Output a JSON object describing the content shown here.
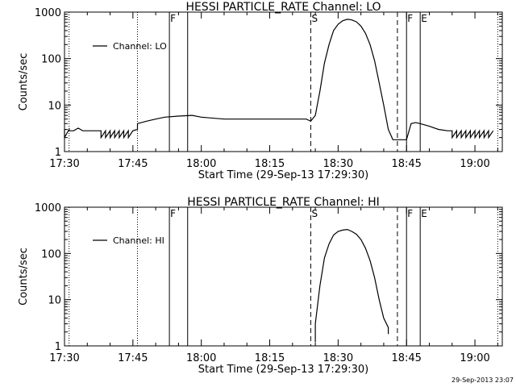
{
  "chart_data": [
    {
      "type": "line",
      "title": "HESSI PARTICLE_RATE Channel: LO",
      "xlabel": "Start Time (29-Sep-13 17:29:30)",
      "ylabel": "Counts/sec",
      "y_scale": "log",
      "ylim": [
        1,
        1000
      ],
      "xlim": [
        "17:30",
        "19:06"
      ],
      "x_ticks": [
        "17:30",
        "17:45",
        "18:00",
        "18:15",
        "18:30",
        "18:45",
        "19:00"
      ],
      "y_ticks": [
        "1",
        "10",
        "100",
        "1000"
      ],
      "legend": {
        "placement": "top-left",
        "label": "Channel: LO"
      },
      "markers": [
        {
          "x": "17:31",
          "style": "dotted",
          "label": ""
        },
        {
          "x": "17:46",
          "style": "dotted",
          "label": ""
        },
        {
          "x": "17:53",
          "style": "solid",
          "label": "F"
        },
        {
          "x": "17:57",
          "style": "solid",
          "label": ""
        },
        {
          "x": "18:24",
          "style": "dashed",
          "label": "S"
        },
        {
          "x": "18:43",
          "style": "dashed",
          "label": ""
        },
        {
          "x": "18:45",
          "style": "solid",
          "label": "F"
        },
        {
          "x": "18:48",
          "style": "solid",
          "label": "E"
        },
        {
          "x": "19:05",
          "style": "dotted",
          "label": ""
        }
      ],
      "series": [
        {
          "x": [
            "17:30",
            "17:30",
            "17:31",
            "17:31",
            "17:32",
            "17:33",
            "17:34",
            "17:38",
            "17:38",
            "17:39",
            "17:39",
            "17:40",
            "17:40",
            "17:41",
            "17:41",
            "17:42",
            "17:42",
            "17:43",
            "17:43",
            "17:44",
            "17:44",
            "17:45",
            "17:46",
            "17:46",
            "17:48",
            "17:50",
            "17:52",
            "17:55",
            "17:58",
            "18:00",
            "18:05",
            "18:10",
            "18:15",
            "18:20",
            "18:22",
            "18:23",
            "18:24",
            "18:25",
            "18:26",
            "18:27",
            "18:28",
            "18:29",
            "18:30",
            "18:31",
            "18:32",
            "18:33",
            "18:34",
            "18:35",
            "18:36",
            "18:37",
            "18:38",
            "18:39",
            "18:40",
            "18:41",
            "18:42",
            "18:43",
            "18:44",
            "18:45",
            "18:46",
            "18:47",
            "18:48",
            "18:50",
            "18:52",
            "18:54",
            "18:55",
            "18:55",
            "18:56",
            "18:56",
            "18:57",
            "18:57",
            "18:58",
            "18:58",
            "18:59",
            "18:59",
            "19:00",
            "19:00",
            "19:01",
            "19:01",
            "19:02",
            "19:02",
            "19:03",
            "19:03",
            "19:04"
          ],
          "values": [
            3,
            2,
            3,
            2.8,
            2.8,
            3.2,
            2.8,
            2.8,
            2,
            2.8,
            2,
            2.8,
            2,
            2.8,
            2,
            2.8,
            2,
            2.8,
            2,
            2.8,
            2,
            2.8,
            3,
            4,
            4.5,
            5,
            5.5,
            5.8,
            6,
            5.5,
            5,
            5,
            5,
            5,
            5,
            5,
            4.5,
            6,
            20,
            80,
            200,
            400,
            550,
            650,
            700,
            680,
            620,
            500,
            350,
            200,
            90,
            30,
            10,
            3,
            1.8,
            1.8,
            1.8,
            1.8,
            4,
            4.2,
            4,
            3.5,
            3,
            2.8,
            2.8,
            2,
            2.8,
            2,
            2.8,
            2,
            2.8,
            2,
            2.8,
            2,
            2.8,
            2,
            2.8,
            2,
            2.8,
            2,
            2.8,
            2,
            2.8
          ]
        }
      ]
    },
    {
      "type": "line",
      "title": "HESSI PARTICLE_RATE Channel: HI",
      "xlabel": "Start Time (29-Sep-13 17:29:30)",
      "ylabel": "Counts/sec",
      "y_scale": "log",
      "ylim": [
        1,
        1000
      ],
      "xlim": [
        "17:30",
        "19:06"
      ],
      "x_ticks": [
        "17:30",
        "17:45",
        "18:00",
        "18:15",
        "18:30",
        "18:45",
        "19:00"
      ],
      "y_ticks": [
        "1",
        "10",
        "100",
        "1000"
      ],
      "legend": {
        "placement": "top-left",
        "label": "Channel: HI"
      },
      "markers": [
        {
          "x": "17:31",
          "style": "dotted",
          "label": ""
        },
        {
          "x": "17:46",
          "style": "dotted",
          "label": ""
        },
        {
          "x": "17:53",
          "style": "solid",
          "label": "F"
        },
        {
          "x": "17:57",
          "style": "solid",
          "label": ""
        },
        {
          "x": "18:24",
          "style": "dashed",
          "label": "S"
        },
        {
          "x": "18:43",
          "style": "dashed",
          "label": ""
        },
        {
          "x": "18:45",
          "style": "solid",
          "label": "F"
        },
        {
          "x": "18:48",
          "style": "solid",
          "label": "E"
        },
        {
          "x": "19:05",
          "style": "dotted",
          "label": ""
        }
      ],
      "series": [
        {
          "x": [
            "18:25",
            "18:25",
            "18:26",
            "18:27",
            "18:28",
            "18:29",
            "18:30",
            "18:31",
            "18:32",
            "18:33",
            "18:34",
            "18:35",
            "18:36",
            "18:37",
            "18:38",
            "18:39",
            "18:40",
            "18:41",
            "18:41"
          ],
          "values": [
            1.2,
            3,
            20,
            80,
            160,
            250,
            300,
            320,
            330,
            300,
            260,
            200,
            130,
            70,
            30,
            10,
            4,
            2.5,
            1.8
          ]
        }
      ]
    }
  ],
  "footer": {
    "timestamp": "29-Sep-2013 23:07"
  }
}
